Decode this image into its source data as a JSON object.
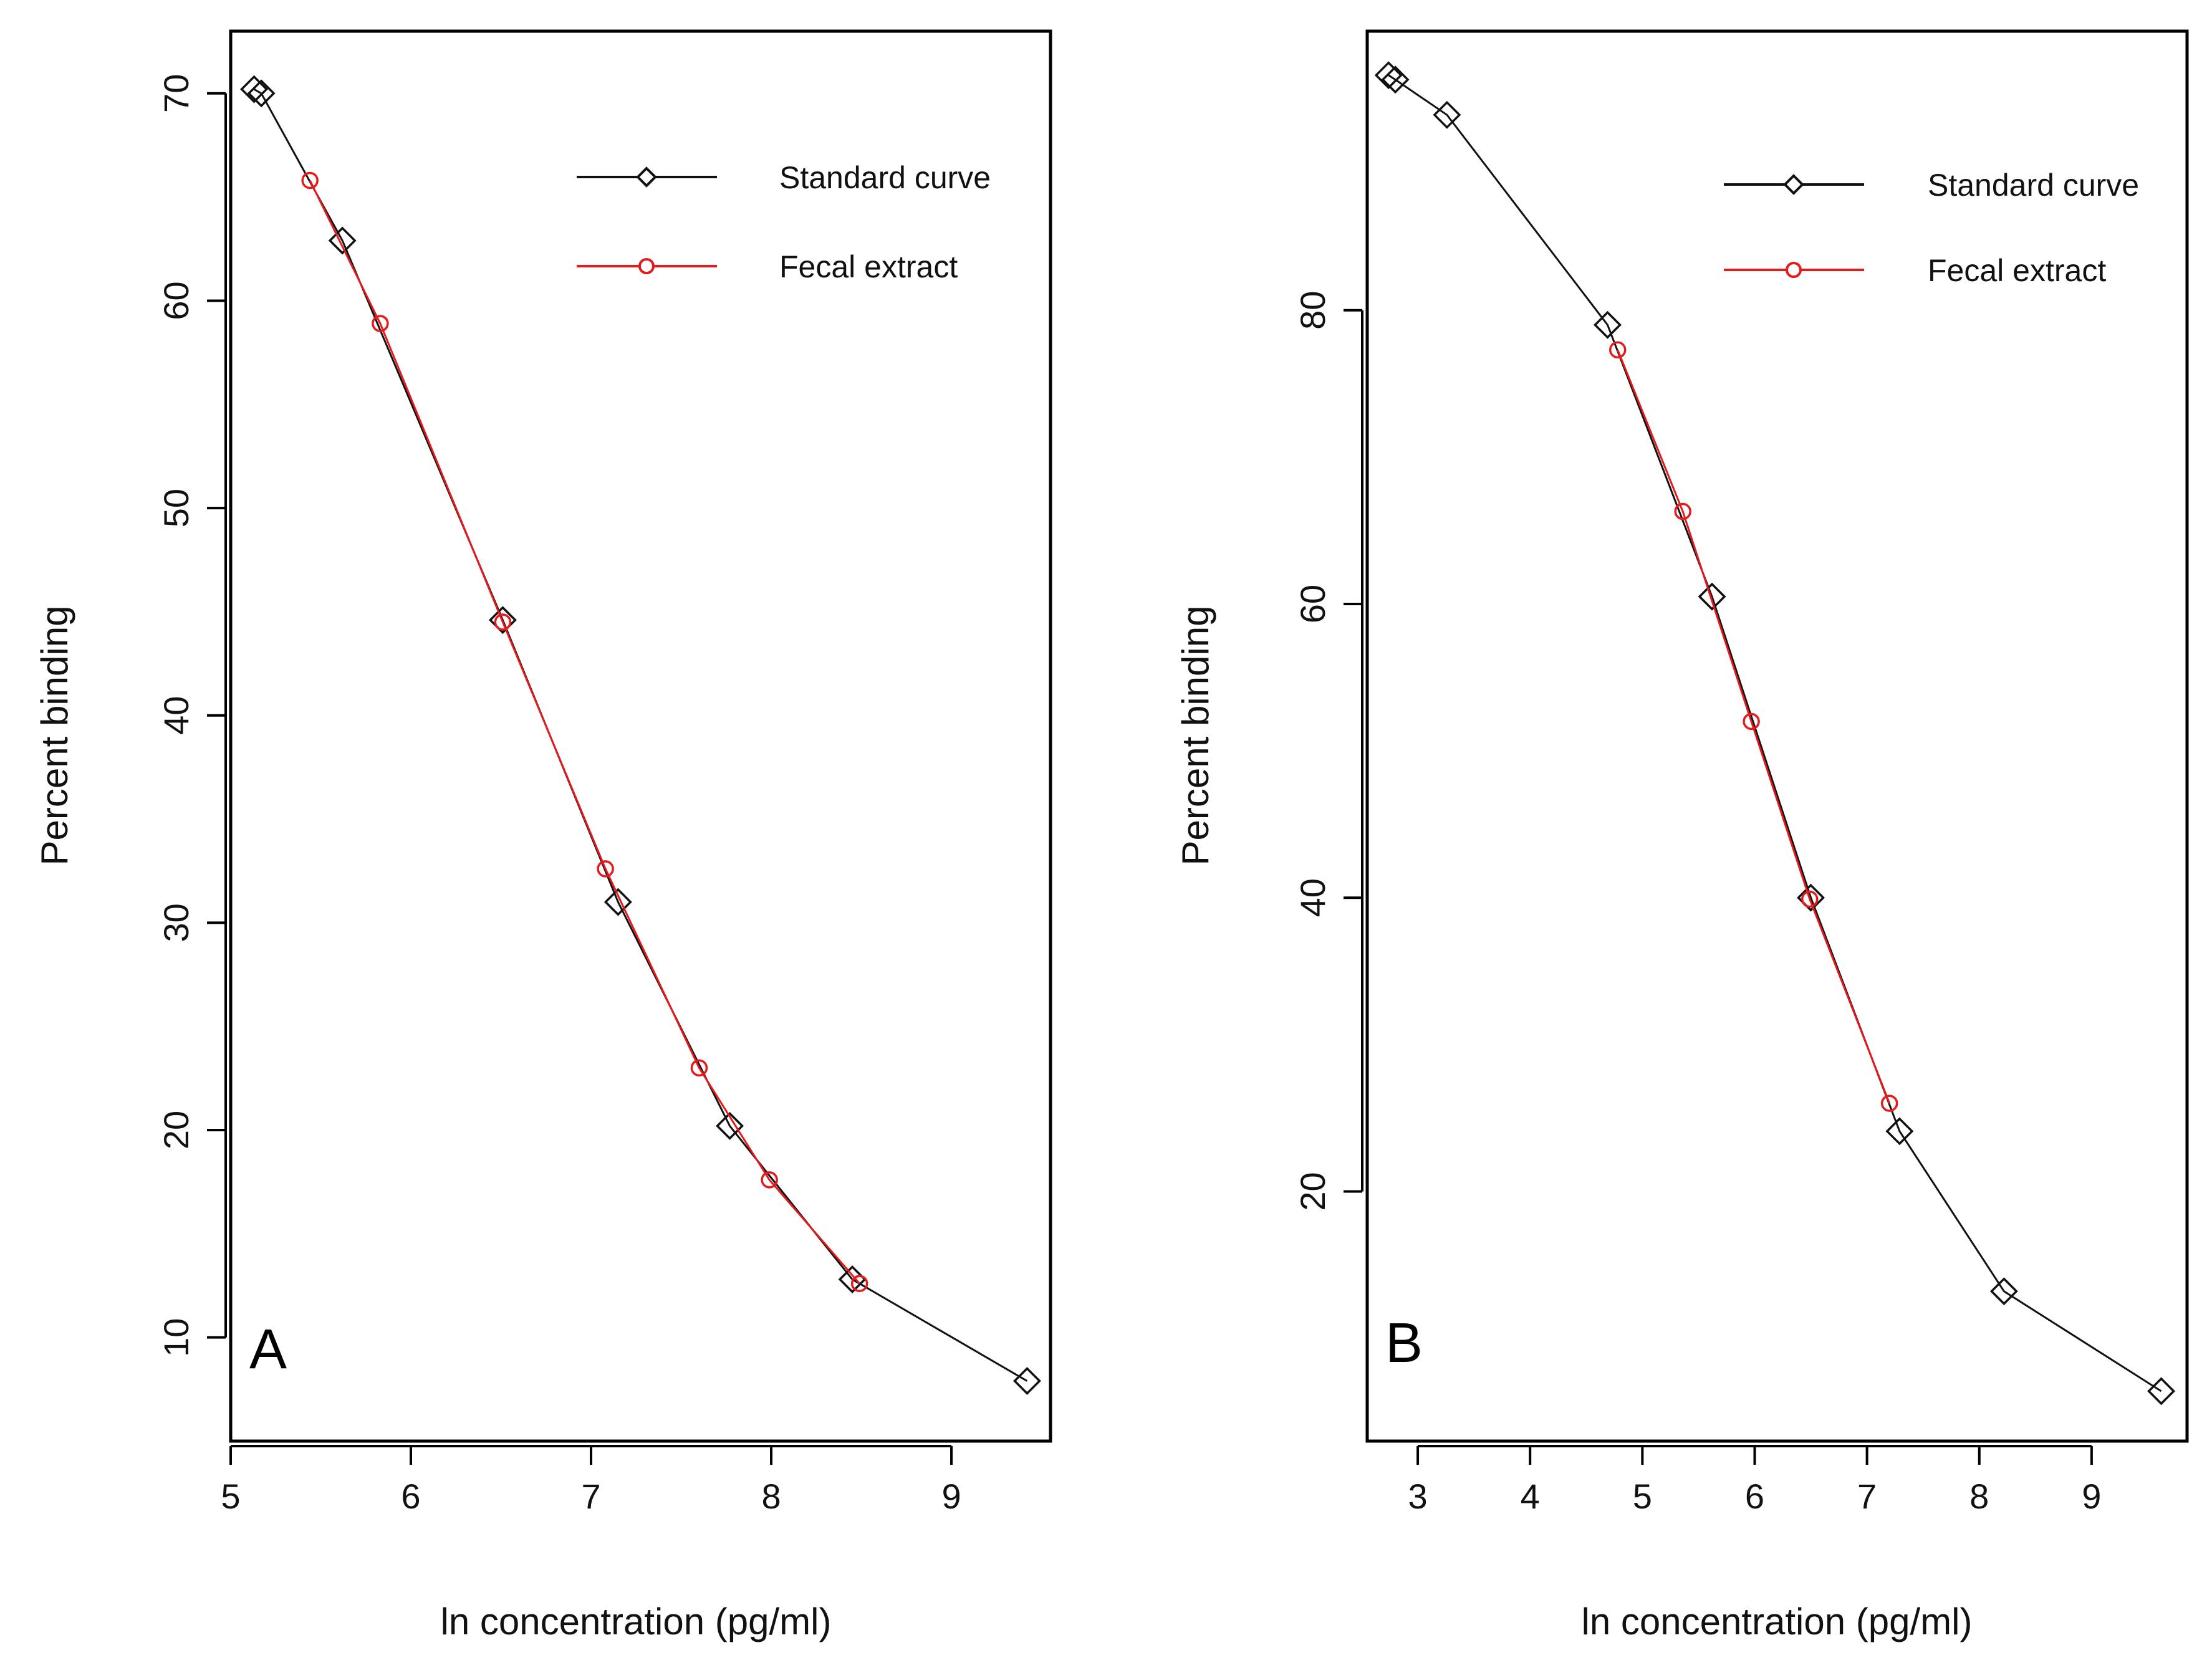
{
  "colors": {
    "standard": "#111111",
    "fecal": "#e41a1c",
    "frame": "#000000"
  },
  "chart_data": [
    {
      "type": "line",
      "panel_label": "A",
      "xlabel": "ln concentration (pg/ml)",
      "ylabel": "Percent binding",
      "xlim": [
        5.0,
        9.55
      ],
      "ylim": [
        5.0,
        73.0
      ],
      "xticks": [
        5,
        6,
        7,
        8,
        9
      ],
      "yticks": [
        10,
        20,
        30,
        40,
        50,
        60,
        70
      ],
      "legend": {
        "position": "top-right",
        "entries": [
          "Standard curve",
          "Fecal extract"
        ]
      },
      "series": [
        {
          "name": "Standard curve",
          "marker": "diamond",
          "x": [
            5.13,
            5.17,
            5.62,
            6.51,
            7.15,
            7.77,
            8.45,
            9.42
          ],
          "y": [
            70.2,
            70.0,
            62.9,
            44.6,
            31.0,
            20.2,
            12.8,
            7.9
          ]
        },
        {
          "name": "Fecal extract",
          "marker": "circle",
          "x": [
            5.44,
            5.83,
            6.51,
            7.08,
            7.6,
            7.99,
            8.49
          ],
          "y": [
            65.8,
            58.9,
            44.5,
            32.6,
            23.0,
            17.6,
            12.6
          ]
        }
      ]
    },
    {
      "type": "line",
      "panel_label": "B",
      "xlabel": "ln concentration (pg/ml)",
      "ylabel": "Percent binding",
      "xlim": [
        2.55,
        9.85
      ],
      "ylim": [
        3.0,
        99.0
      ],
      "xticks": [
        3,
        4,
        5,
        6,
        7,
        8,
        9
      ],
      "yticks": [
        20,
        40,
        60,
        80
      ],
      "legend": {
        "position": "top-right",
        "entries": [
          "Standard curve",
          "Fecal extract"
        ]
      },
      "series": [
        {
          "name": "Standard curve",
          "marker": "diamond",
          "x": [
            2.74,
            2.8,
            3.26,
            4.69,
            5.62,
            6.5,
            7.29,
            8.22,
            9.62
          ],
          "y": [
            96.0,
            95.7,
            93.3,
            79.0,
            60.5,
            40.0,
            24.1,
            13.2,
            6.4
          ]
        },
        {
          "name": "Fecal extract",
          "marker": "circle",
          "x": [
            4.78,
            5.36,
            5.97,
            6.49,
            7.2
          ],
          "y": [
            77.3,
            66.3,
            52.0,
            39.9,
            26.0
          ]
        }
      ]
    }
  ]
}
